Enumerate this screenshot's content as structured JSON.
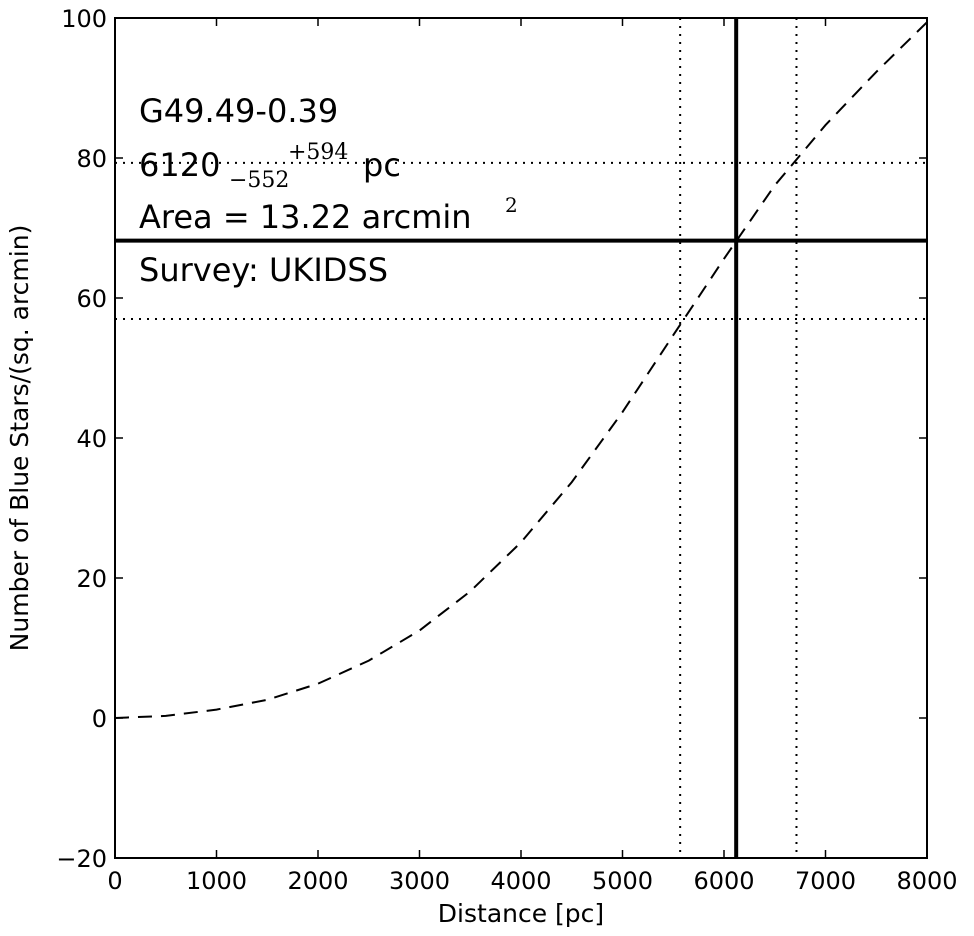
{
  "chart_data": {
    "type": "line",
    "xlabel": "Distance [pc]",
    "ylabel": "Number of Blue Stars/(sq. arcmin)",
    "xlim": [
      0,
      8000
    ],
    "ylim": [
      -20,
      100
    ],
    "xticks": [
      0,
      1000,
      2000,
      3000,
      4000,
      5000,
      6000,
      7000,
      8000
    ],
    "yticks": [
      -20,
      0,
      20,
      40,
      60,
      80,
      100
    ],
    "xtick_labels": [
      "0",
      "1000",
      "2000",
      "3000",
      "4000",
      "5000",
      "6000",
      "7000",
      "8000"
    ],
    "ytick_labels": [
      "−20",
      "0",
      "20",
      "40",
      "60",
      "80",
      "100"
    ],
    "grid": false,
    "series": [
      {
        "style": "dashed",
        "x": [
          0,
          500,
          1000,
          1500,
          2000,
          2500,
          3000,
          3500,
          4000,
          4500,
          5000,
          5500,
          6000,
          6500,
          7000,
          7500,
          8000
        ],
        "y": [
          0,
          0.3,
          1.2,
          2.6,
          4.9,
          8.2,
          12.5,
          18.1,
          25.1,
          33.7,
          43.7,
          54.7,
          65.6,
          76.1,
          84.7,
          92.3,
          99.4
        ]
      }
    ],
    "reference_lines": {
      "solid": {
        "x": 6120,
        "y": 68.2
      },
      "dotted": {
        "x": [
          5568,
          6714
        ],
        "y": [
          57.0,
          79.3
        ]
      }
    },
    "annotations": {
      "line1": "G49.49-0.39",
      "line2_value": "6120",
      "line2_lower": "−552",
      "line2_upper": "+594",
      "line2_unit": "pc",
      "line3_text": "Area = 13.22 arcmin",
      "line3_sup": "2",
      "line4": "Survey: UKIDSS"
    }
  }
}
